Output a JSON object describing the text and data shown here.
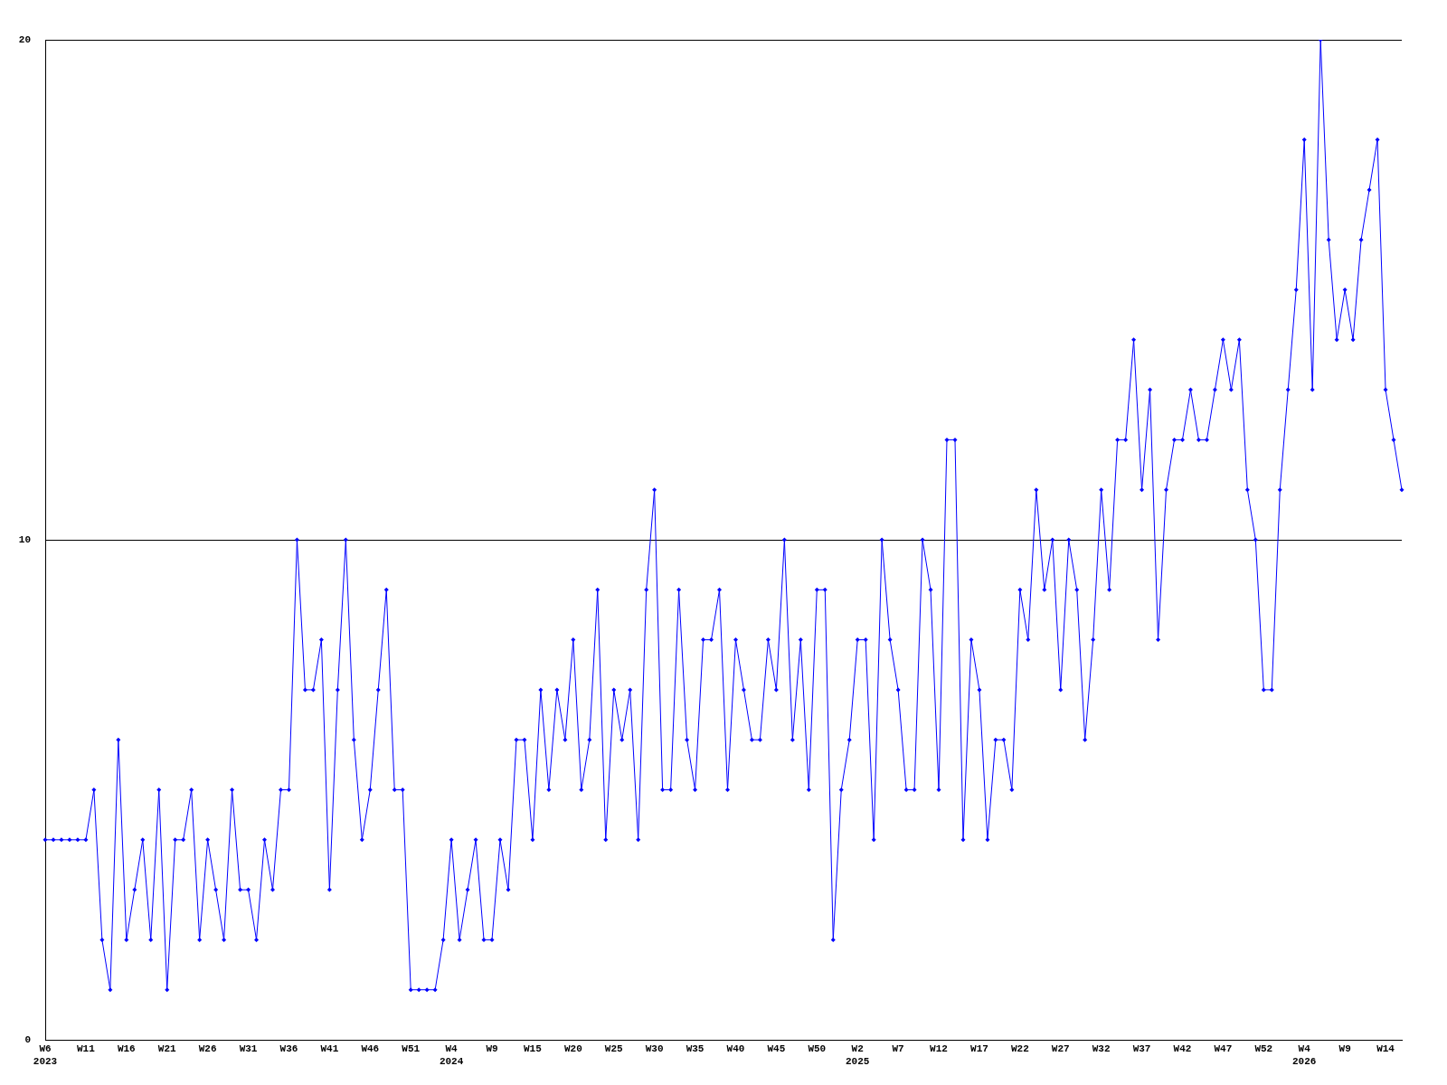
{
  "chart_data": {
    "type": "line",
    "categories": [
      "W6\n2023",
      null,
      null,
      null,
      null,
      "W11",
      null,
      null,
      null,
      null,
      "W16",
      null,
      null,
      null,
      null,
      "W21",
      null,
      null,
      null,
      null,
      "W26",
      null,
      null,
      null,
      null,
      "W31",
      null,
      null,
      null,
      null,
      "W36",
      null,
      null,
      null,
      null,
      "W41",
      null,
      null,
      null,
      null,
      "W46",
      null,
      null,
      null,
      null,
      "W51",
      null,
      null,
      null,
      null,
      "W4\n2024",
      null,
      null,
      null,
      null,
      "W9",
      null,
      null,
      null,
      null,
      "W15",
      null,
      null,
      null,
      null,
      "W20",
      null,
      null,
      null,
      null,
      "W25",
      null,
      null,
      null,
      null,
      "W30",
      null,
      null,
      null,
      null,
      "W35",
      null,
      null,
      null,
      null,
      "W40",
      null,
      null,
      null,
      null,
      "W45",
      null,
      null,
      null,
      null,
      "W50",
      null,
      null,
      null,
      null,
      "W2\n2025",
      null,
      null,
      null,
      null,
      "W7",
      null,
      null,
      null,
      null,
      "W12",
      null,
      null,
      null,
      null,
      "W17",
      null,
      null,
      null,
      null,
      "W22",
      null,
      null,
      null,
      null,
      "W27",
      null,
      null,
      null,
      null,
      "W32",
      null,
      null,
      null,
      null,
      "W37",
      null,
      null,
      null,
      null,
      "W42",
      null,
      null,
      null,
      null,
      "W47",
      null,
      null,
      null,
      null,
      "W52",
      null,
      null,
      null,
      null,
      "W4\n2026",
      null,
      null,
      null,
      null,
      "W9",
      null,
      null,
      null,
      null,
      "W14",
      null,
      null
    ],
    "series": [
      {
        "color": "#0000ff",
        "values": [
          4,
          4,
          4,
          4,
          4,
          4,
          5,
          2,
          1,
          6,
          2,
          3,
          4,
          2,
          5,
          1,
          4,
          4,
          5,
          2,
          4,
          3,
          2,
          5,
          3,
          3,
          2,
          4,
          3,
          5,
          5,
          10,
          7,
          7,
          8,
          3,
          7,
          10,
          6,
          4,
          5,
          7,
          9,
          5,
          5,
          1,
          1,
          1,
          1,
          2,
          4,
          2,
          3,
          4,
          2,
          2,
          4,
          3,
          6,
          6,
          4,
          7,
          5,
          7,
          6,
          8,
          5,
          6,
          9,
          4,
          7,
          6,
          7,
          4,
          9,
          11,
          5,
          5,
          9,
          6,
          5,
          8,
          8,
          9,
          5,
          8,
          7,
          6,
          6,
          8,
          7,
          10,
          6,
          8,
          5,
          9,
          9,
          2,
          5,
          6,
          8,
          8,
          4,
          10,
          8,
          7,
          5,
          5,
          10,
          9,
          5,
          12,
          12,
          4,
          8,
          7,
          4,
          6,
          6,
          5,
          9,
          8,
          11,
          9,
          10,
          7,
          10,
          9,
          6,
          8,
          11,
          9,
          12,
          12,
          14,
          11,
          13,
          8,
          11,
          12,
          12,
          13,
          12,
          12,
          13,
          14,
          13,
          14,
          11,
          10,
          7,
          7,
          11,
          13,
          15,
          18,
          13,
          20,
          16,
          14,
          15,
          14,
          16,
          17,
          18,
          13,
          12,
          11
        ]
      }
    ],
    "ylim": [
      0,
      20
    ],
    "yticks": [
      0,
      10,
      20
    ],
    "grid": "y",
    "legend": false,
    "marker": "diamond",
    "line_style": "solid"
  }
}
